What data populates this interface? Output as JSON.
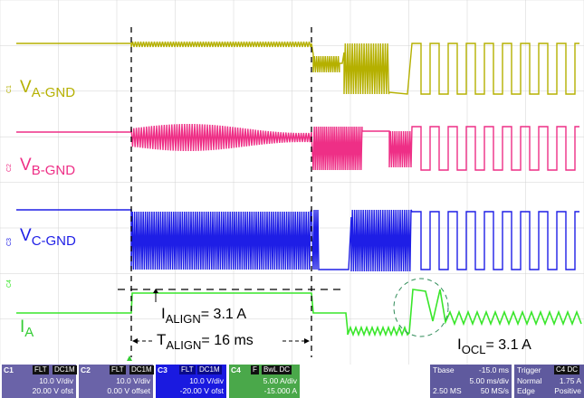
{
  "colors": {
    "ch1": "#b5b000",
    "ch2": "#ee2f86",
    "ch3": "#1e1ee6",
    "ch4": "#39e62a",
    "grid": "#d2d2d2",
    "cursor": "#000000",
    "panel": "#5f5a9e",
    "panel_c3": "#1a1ae0",
    "panel_c4": "#39a43a"
  },
  "labels": {
    "va_main": "V",
    "va_sub": "A-GND",
    "vb_main": "V",
    "vb_sub": "B-GND",
    "vc_main": "V",
    "vc_sub": "C-GND",
    "ia_main": "I",
    "ia_sub": "A",
    "ialign_main": "I",
    "ialign_sub": "ALIGN",
    "ialign_val": "= 3.1 A",
    "talign_main": "T",
    "talign_sub": "ALIGN",
    "talign_val": "= 16 ms",
    "iocl_main": "I",
    "iocl_sub": "OCL",
    "iocl_val": "= 3.1 A"
  },
  "markers": {
    "c1": "C1",
    "c2": "C2",
    "c3": "C3",
    "c4": "C4"
  },
  "panels": {
    "c1": {
      "name": "C1",
      "tag1": "FLT",
      "tag2": "DC1M",
      "scale": "10.0 V/div",
      "offset": "20.00 V ofst"
    },
    "c2": {
      "name": "C2",
      "tag1": "FLT",
      "tag2": "DC1M",
      "scale": "10.0 V/div",
      "offset": "0.00 V offset"
    },
    "c3": {
      "name": "C3",
      "tag1": "FLT",
      "tag2": "DC1M",
      "scale": "10.0 V/div",
      "offset": "-20.00 V ofst"
    },
    "c4": {
      "name": "C4",
      "tag1": "F",
      "tag2": "BwL DC",
      "scale": "5.00 A/div",
      "offset": "-15.000 A"
    },
    "tbase": {
      "label": "Tbase",
      "delay": "-15.0 ms",
      "scale": "5.00 ms/div",
      "points": "2.50 MS",
      "rate": "50 MS/s"
    },
    "trigger": {
      "label": "Trigger",
      "tag": "C4 DC",
      "mode": "Normal",
      "level": "1.75 A",
      "type": "Edge",
      "slope": "Positive"
    }
  }
}
